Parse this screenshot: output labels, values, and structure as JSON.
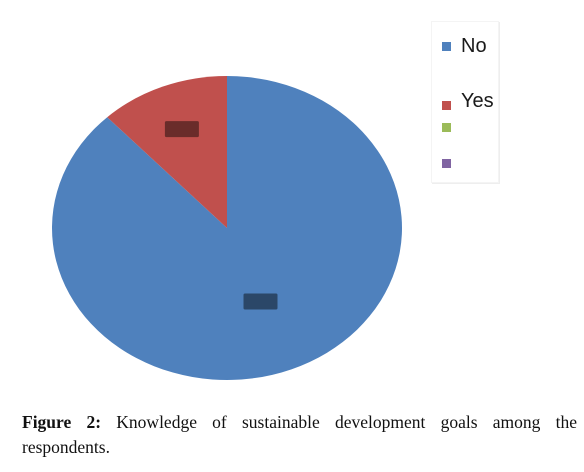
{
  "chart_data": {
    "type": "pie",
    "title": "",
    "series": [
      {
        "name": "No",
        "value": 88
      },
      {
        "name": "Yes",
        "value": 12
      },
      {
        "name": "",
        "value": 0
      },
      {
        "name": "",
        "value": 0
      }
    ],
    "colors": [
      "#4f81bd",
      "#c0504d",
      "#9bbb59",
      "#8064a2"
    ],
    "legend_position": "right",
    "data_labels_obscured": true
  },
  "caption": {
    "label": "Figure 2:",
    "text": " Knowledge of sustainable development goals among the respondents."
  }
}
